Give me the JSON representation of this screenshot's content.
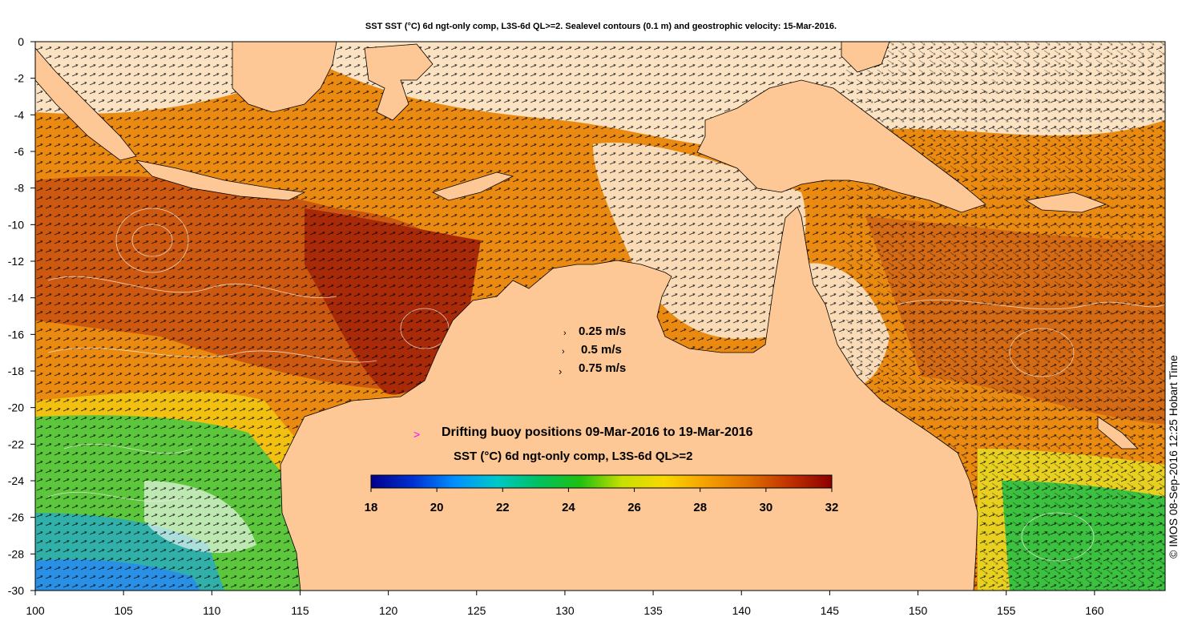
{
  "title": "SST SST (°C) 6d ngt-only comp, L3S-6d QL>=2. Sealevel contours (0.1 m) and geostrophic velocity: 15-Mar-2016.",
  "credit": "© IMOS 08-Sep-2016 12:25 Hobart Time",
  "map": {
    "lon_range": [
      100,
      164
    ],
    "lat_range": [
      -30,
      0
    ],
    "lon_ticks": [
      "100",
      "105",
      "110",
      "115",
      "120",
      "125",
      "130",
      "135",
      "140",
      "145",
      "150",
      "155",
      "160"
    ],
    "lat_ticks": [
      "0",
      "-2",
      "-4",
      "-6",
      "-8",
      "-10",
      "-12",
      "-14",
      "-16",
      "-18",
      "-20",
      "-22",
      "-24",
      "-26",
      "-28",
      "-30"
    ],
    "land_color": "#fdc895",
    "no_data_color": "#ffffff"
  },
  "velocity_legend": [
    {
      "label": "0.25 m/s"
    },
    {
      "label": "0.5 m/s"
    },
    {
      "label": "0.75 m/s"
    }
  ],
  "buoy_legend": {
    "marker": ">",
    "marker_color": "#ff00ff",
    "label": "Drifting buoy positions 09-Mar-2016 to 19-Mar-2016"
  },
  "colorbar": {
    "title": "SST (°C) 6d ngt-only comp, L3S-6d QL>=2",
    "min": 18,
    "max": 32,
    "ticks": [
      "18",
      "20",
      "22",
      "24",
      "26",
      "28",
      "30",
      "32"
    ],
    "colors": [
      "#00008b",
      "#0030d0",
      "#0090ff",
      "#00c8c8",
      "#00c060",
      "#20c010",
      "#c8e000",
      "#f8d800",
      "#f5a000",
      "#e07000",
      "#c03000",
      "#8b0000"
    ]
  }
}
